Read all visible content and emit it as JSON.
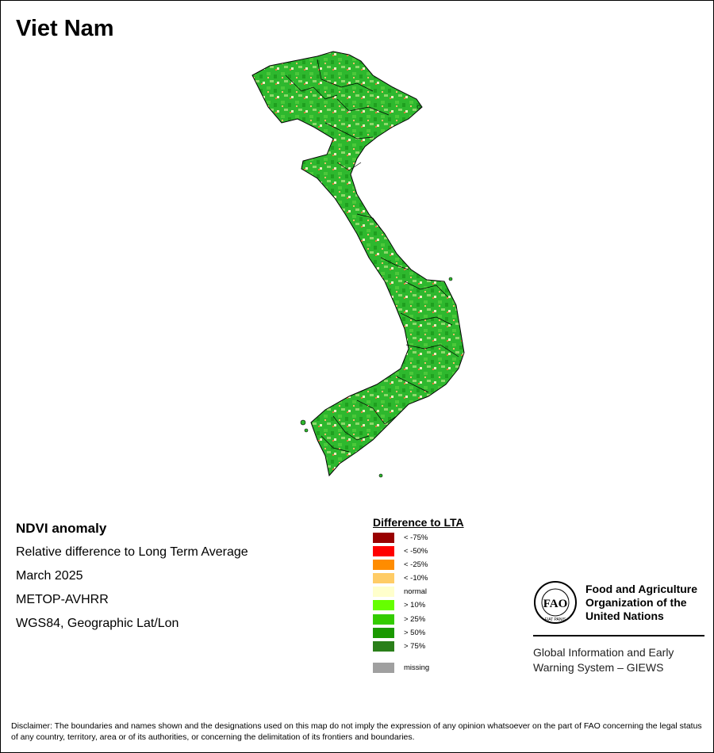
{
  "map": {
    "title": "Viet Nam",
    "fill_base": "#2eb82e",
    "fill_pattern": [
      "#4cc83a",
      "#1f9f1f",
      "#8ed86b",
      "#f3efc3",
      "#f6bc6a",
      "#e1783a"
    ],
    "boundary_color": "#000000"
  },
  "info": {
    "heading": "NDVI anomaly",
    "line1": "Relative difference to Long Term Average",
    "line2": "March 2025",
    "line3": "METOP-AVHRR",
    "line4": "WGS84, Geographic Lat/Lon"
  },
  "legend": {
    "title": "Difference to LTA",
    "items": [
      {
        "label": "< -75%",
        "color": "#990000"
      },
      {
        "label": "< -50%",
        "color": "#ff0000"
      },
      {
        "label": "< -25%",
        "color": "#ff8c00"
      },
      {
        "label": "< -10%",
        "color": "#ffcc66"
      },
      {
        "label": "normal",
        "color": "#ffffcc"
      },
      {
        "label": "> 10%",
        "color": "#66ff00"
      },
      {
        "label": "> 25%",
        "color": "#33cc00"
      },
      {
        "label": "> 50%",
        "color": "#1a9900"
      },
      {
        "label": "> 75%",
        "color": "#2a7f1a"
      }
    ],
    "missing": {
      "label": "missing",
      "color": "#a0a0a0"
    }
  },
  "fao": {
    "logo_text": "FAO",
    "logo_ring": "FIAT PANIS",
    "name": "Food and Agriculture Organization of the United Nations",
    "giews": "Global Information and Early Warning System – GIEWS"
  },
  "disclaimer": "Disclaimer: The boundaries and names shown and the designations used on this map do not imply the expression of any opinion whatsoever on the part of FAO concerning the legal status of any country, territory, area or of its authorities, or concerning the delimitation of its frontiers and boundaries."
}
